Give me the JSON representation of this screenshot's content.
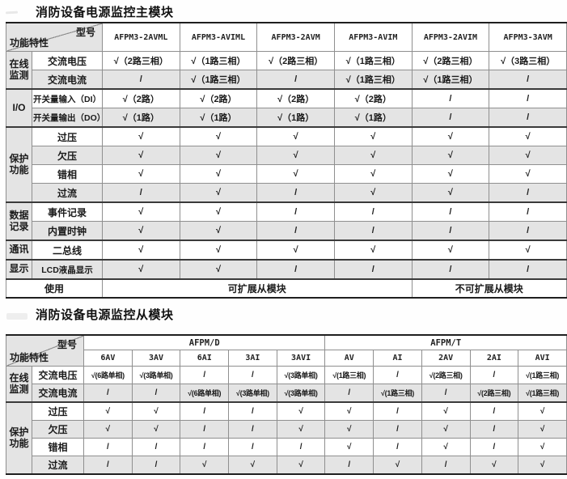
{
  "table1": {
    "title": "消防设备电源监控主模块",
    "corner": {
      "top": "型号",
      "bottom": "功能特性"
    },
    "columns": [
      "AFPM3-2AVML",
      "AFPM3-AVIML",
      "AFPM3-2AVM",
      "AFPM3-AVIM",
      "AFPM3-2AVIM",
      "AFPM3-3AVM"
    ],
    "groups": [
      {
        "name": "在线监测",
        "rows": [
          {
            "label": "交流电压",
            "values": [
              "√（2路三相）",
              "√（1路三相）",
              "√（2路三相）",
              "√（1路三相）",
              "√（2路三相）",
              "√（3路三相）"
            ]
          },
          {
            "label": "交流电流",
            "values": [
              "/",
              "√（1路三相）",
              "/",
              "√（1路三相）",
              "√（1路三相）",
              "/"
            ]
          }
        ]
      },
      {
        "name": "I/O",
        "rows": [
          {
            "label": "开关量输入（DI）",
            "values": [
              "√（2路）",
              "√（2路）",
              "√（2路）",
              "√（2路）",
              "/",
              "/"
            ]
          },
          {
            "label": "开关量输出（DO）",
            "values": [
              "√（1路）",
              "√（1路）",
              "√（1路）",
              "√（1路）",
              "/",
              "/"
            ]
          }
        ]
      },
      {
        "name": "保护功能",
        "rows": [
          {
            "label": "过压",
            "values": [
              "√",
              "√",
              "√",
              "√",
              "√",
              "√"
            ]
          },
          {
            "label": "欠压",
            "values": [
              "√",
              "√",
              "√",
              "√",
              "√",
              "√"
            ]
          },
          {
            "label": "错相",
            "values": [
              "√",
              "√",
              "√",
              "√",
              "√",
              "√"
            ]
          },
          {
            "label": "过流",
            "values": [
              "/",
              "√",
              "/",
              "√",
              "√",
              "/"
            ]
          }
        ]
      },
      {
        "name": "数据记录",
        "rows": [
          {
            "label": "事件记录",
            "values": [
              "√",
              "√",
              "/",
              "/",
              "/",
              "/"
            ]
          },
          {
            "label": "内置时钟",
            "values": [
              "√",
              "√",
              "/",
              "/",
              "/",
              "/"
            ]
          }
        ]
      },
      {
        "name": "通讯",
        "rows": [
          {
            "label": "二总线",
            "values": [
              "√",
              "√",
              "√",
              "√",
              "√",
              "√"
            ]
          }
        ]
      },
      {
        "name": "显示",
        "rows": [
          {
            "label": "LCD液晶显示",
            "values": [
              "√",
              "√",
              "/",
              "/",
              "/",
              "/"
            ]
          }
        ]
      }
    ],
    "footer": {
      "label": "使用",
      "cells": [
        {
          "text": "可扩展从模块",
          "span": 4
        },
        {
          "text": "不可扩展从模块",
          "span": 2
        }
      ]
    }
  },
  "table2": {
    "title": "消防设备电源监控从模块",
    "corner": {
      "top": "型号",
      "bottom": "功能特性"
    },
    "column_groups": [
      {
        "name": "AFPM/D",
        "columns": [
          "6AV",
          "3AV",
          "6AI",
          "3AI",
          "3AVI"
        ]
      },
      {
        "name": "AFPM/T",
        "columns": [
          "AV",
          "AI",
          "2AV",
          "2AI",
          "AVI"
        ]
      }
    ],
    "groups": [
      {
        "name": "在线监测",
        "rows": [
          {
            "label": "交流电压",
            "values": [
              "√(6路单相)",
              "√(3路单相)",
              "/",
              "/",
              "√(3路单相)",
              "√(1路三相)",
              "/",
              "√(2路三相)",
              "/",
              "√(1路三相)"
            ]
          },
          {
            "label": "交流电流",
            "values": [
              "/",
              "/",
              "√(6路单相)",
              "√(3路单相)",
              "√(3路单相)",
              "/",
              "√(1路三相)",
              "/",
              "√(2路三相)",
              "√(1路三相)"
            ]
          }
        ]
      },
      {
        "name": "保护功能",
        "rows": [
          {
            "label": "过压",
            "values": [
              "√",
              "√",
              "/",
              "/",
              "√",
              "√",
              "/",
              "√",
              "/",
              "√"
            ]
          },
          {
            "label": "欠压",
            "values": [
              "√",
              "√",
              "/",
              "/",
              "√",
              "√",
              "/",
              "√",
              "/",
              "√"
            ]
          },
          {
            "label": "错相",
            "values": [
              "/",
              "/",
              "/",
              "/",
              "/",
              "√",
              "/",
              "√",
              "/",
              "√"
            ]
          },
          {
            "label": "过流",
            "values": [
              "/",
              "/",
              "√",
              "√",
              "√",
              "/",
              "√",
              "/",
              "√",
              "√"
            ]
          }
        ]
      }
    ]
  }
}
